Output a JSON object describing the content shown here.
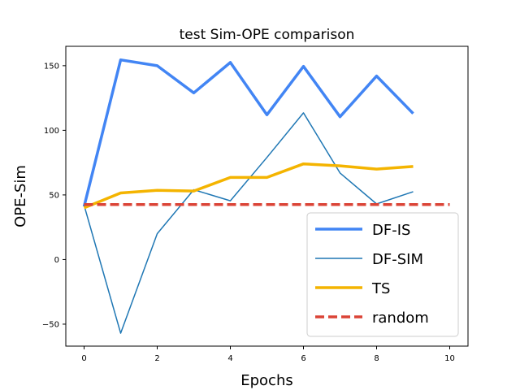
{
  "chart_data": {
    "type": "line",
    "title": "test Sim-OPE comparison",
    "xlabel": "Epochs",
    "ylabel": "OPE-Sim",
    "xlim": [
      -0.5,
      10.5
    ],
    "ylim": [
      -67,
      165
    ],
    "xticks": [
      0,
      2,
      4,
      6,
      8,
      10
    ],
    "yticks": [
      -50,
      0,
      50,
      100,
      150
    ],
    "grid": false,
    "legend_position": "lower-right",
    "series": [
      {
        "name": "DF-IS",
        "color": "#4285f4",
        "style": "solid-thick",
        "x": [
          0,
          1,
          2,
          3,
          4,
          5,
          6,
          7,
          8,
          9
        ],
        "y": [
          41,
          154.5,
          150,
          129,
          152.5,
          112,
          149.5,
          110.5,
          142,
          113
        ]
      },
      {
        "name": "DF-SIM",
        "color": "#1f77b4",
        "style": "solid-thin",
        "x": [
          0,
          1,
          2,
          3,
          4,
          5,
          6,
          7,
          8,
          9
        ],
        "y": [
          42,
          -57,
          20,
          54,
          45.5,
          79,
          113.5,
          67,
          43,
          52.5
        ]
      },
      {
        "name": "TS",
        "color": "#f4b400",
        "style": "solid-thick",
        "x": [
          0,
          1,
          2,
          3,
          4,
          5,
          6,
          7,
          8,
          9
        ],
        "y": [
          40,
          51.5,
          53.5,
          53,
          63.5,
          63.5,
          74,
          72.5,
          70,
          72
        ]
      },
      {
        "name": "random",
        "color": "#db4437",
        "style": "dashed-thick",
        "x": [
          0,
          10
        ],
        "y": [
          42.5,
          42.5
        ]
      }
    ]
  }
}
